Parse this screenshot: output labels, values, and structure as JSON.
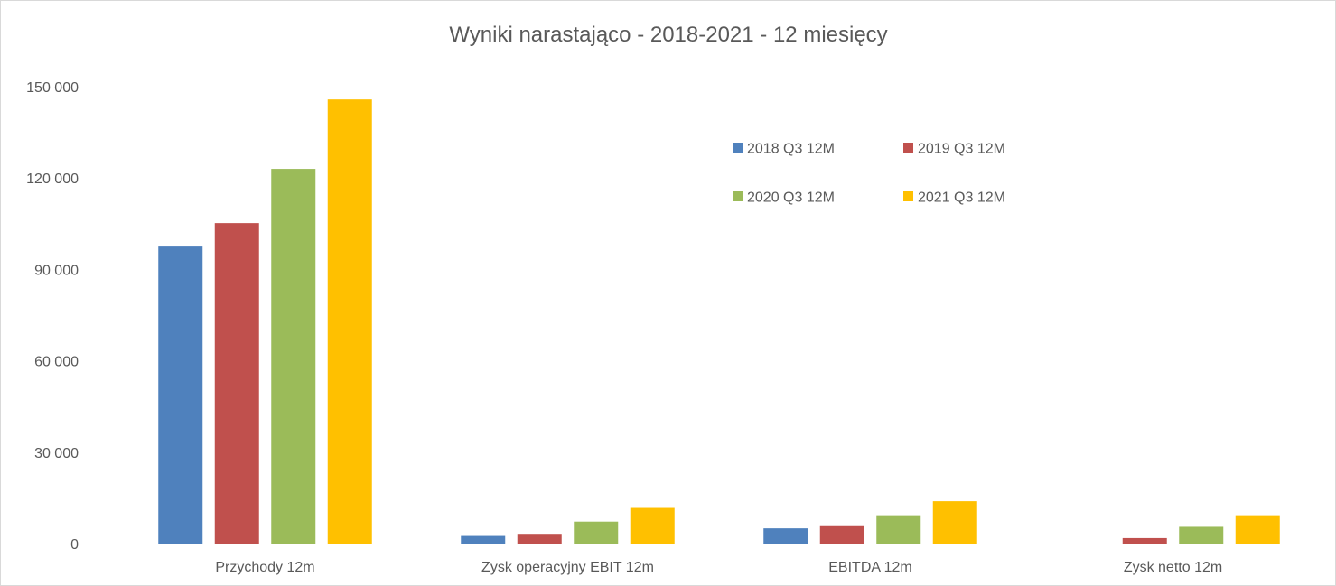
{
  "chart_data": {
    "type": "bar",
    "title": "Wyniki narastająco - 2018-2021 - 12 miesięcy",
    "categories": [
      "Przychody 12m",
      "Zysk operacyjny EBIT 12m",
      "EBITDA 12m",
      "Zysk netto 12m"
    ],
    "series": [
      {
        "name": "2018 Q3 12M",
        "color": "#4f81bd",
        "values": [
          97500,
          2500,
          5000,
          0
        ]
      },
      {
        "name": "2019 Q3 12M",
        "color": "#c0504d",
        "values": [
          105200,
          3200,
          6000,
          1800
        ]
      },
      {
        "name": "2020 Q3 12M",
        "color": "#9bbb59",
        "values": [
          123000,
          7200,
          9300,
          5500
        ]
      },
      {
        "name": "2021 Q3 12M",
        "color": "#ffc000",
        "values": [
          145800,
          11700,
          13900,
          9300
        ]
      }
    ],
    "ylim": [
      0,
      150000
    ],
    "yticks": [
      0,
      30000,
      60000,
      90000,
      120000,
      150000
    ],
    "ytick_labels": [
      "0",
      "30 000",
      "60 000",
      "90 000",
      "120 000",
      "150 000"
    ],
    "grid": false,
    "legend": "top-right",
    "axis_color": "#d9d9d9",
    "text_color": "#595959"
  }
}
